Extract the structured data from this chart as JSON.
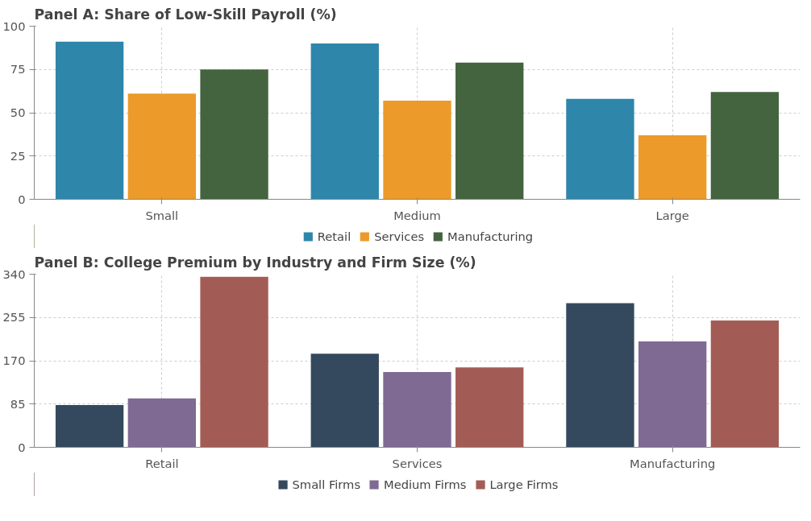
{
  "chart_data": [
    {
      "type": "bar",
      "title": "Panel A: Share of Low-Skill Payroll (%)",
      "categories": [
        "Small",
        "Medium",
        "Large"
      ],
      "series": [
        {
          "name": "Retail",
          "color": "#2e86ab",
          "values": [
            91,
            90,
            58
          ]
        },
        {
          "name": "Services",
          "color": "#ec9a29",
          "values": [
            61,
            57,
            37
          ]
        },
        {
          "name": "Manufacturing",
          "color": "#44633f",
          "values": [
            75,
            79,
            62
          ]
        }
      ],
      "ylim": [
        0,
        100
      ],
      "yticks": [
        0,
        25,
        50,
        75,
        100
      ],
      "grid": true,
      "legend": "bottom"
    },
    {
      "type": "bar",
      "title": "Panel B: College Premium by Industry and Firm Size (%)",
      "categories": [
        "Retail",
        "Services",
        "Manufacturing"
      ],
      "series": [
        {
          "name": "Small Firms",
          "color": "#34495e",
          "values": [
            83,
            184,
            283
          ]
        },
        {
          "name": "Medium Firms",
          "color": "#7f6a93",
          "values": [
            96,
            148,
            208
          ]
        },
        {
          "name": "Large Firms",
          "color": "#a35c55",
          "values": [
            335,
            157,
            249
          ]
        }
      ],
      "ylim": [
        0,
        340
      ],
      "yticks": [
        0,
        85,
        170,
        255,
        340
      ],
      "grid": true,
      "legend": "bottom"
    }
  ]
}
